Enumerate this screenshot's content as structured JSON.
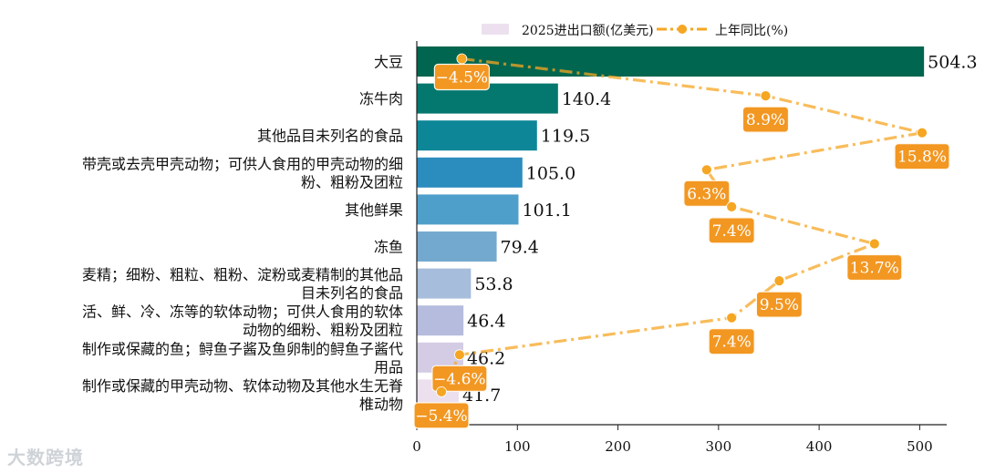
{
  "chart_data": {
    "type": "bar",
    "orientation": "horizontal",
    "title": "",
    "xlabel": "",
    "ylabel": "",
    "xlim": [
      0,
      530
    ],
    "x_ticks": [
      "0",
      "100",
      "200",
      "300",
      "400",
      "500"
    ],
    "categories": [
      [
        "大豆"
      ],
      [
        "冻牛肉"
      ],
      [
        "其他品目未列名的食品"
      ],
      [
        "带壳或去壳甲壳动物；可供人食用的甲壳动物的细",
        "粉、粗粉及团粒"
      ],
      [
        "其他鲜果"
      ],
      [
        "冻鱼"
      ],
      [
        "麦精；细粉、粗粒、粗粉、淀粉或麦精制的其他品",
        "目未列名的食品"
      ],
      [
        "活、鲜、冷、冻等的软体动物；可供人食用的软体",
        "动物的细粉、粗粉及团粒"
      ],
      [
        "制作或保藏的鱼；鲟鱼子酱及鱼卵制的鲟鱼子酱代",
        "用品"
      ],
      [
        "制作或保藏的甲壳动物、软体动物及其他水生无脊",
        "椎动物"
      ]
    ],
    "series": [
      {
        "name": "2025进出口额(亿美元)",
        "kind": "bar",
        "values": [
          504.3,
          140.4,
          119.5,
          105.0,
          101.1,
          79.4,
          53.8,
          46.4,
          46.2,
          41.7
        ],
        "labels": [
          "504.3",
          "140.4",
          "119.5",
          "105.0",
          "101.1",
          "79.4",
          "53.8",
          "46.4",
          "46.2",
          "41.7"
        ],
        "colors": [
          "#00664f",
          "#04786e",
          "#0d8797",
          "#2b8cbe",
          "#4f9fcb",
          "#74a9cf",
          "#a6bddb",
          "#b6bcde",
          "#d4cce4",
          "#ece0ef"
        ]
      },
      {
        "name": "上年同比(%)",
        "kind": "line",
        "values": [
          -4.5,
          8.9,
          15.8,
          6.3,
          7.4,
          13.7,
          9.5,
          7.4,
          -4.6,
          -5.4
        ],
        "labels": [
          "−4.5%",
          "8.9%",
          "15.8%",
          "6.3%",
          "7.4%",
          "13.7%",
          "9.5%",
          "7.4%",
          "−4.6%",
          "−5.4%"
        ],
        "color": "#f5a623",
        "label_box_color": "#f29722"
      }
    ],
    "legend": {
      "placement": "top-center",
      "bar_label": "2025进出口额(亿美元)",
      "line_label": "上年同比(%)",
      "bar_swatch_color": "#ece0ef",
      "line_color": "#f5a623"
    }
  },
  "watermark": "大数跨境"
}
